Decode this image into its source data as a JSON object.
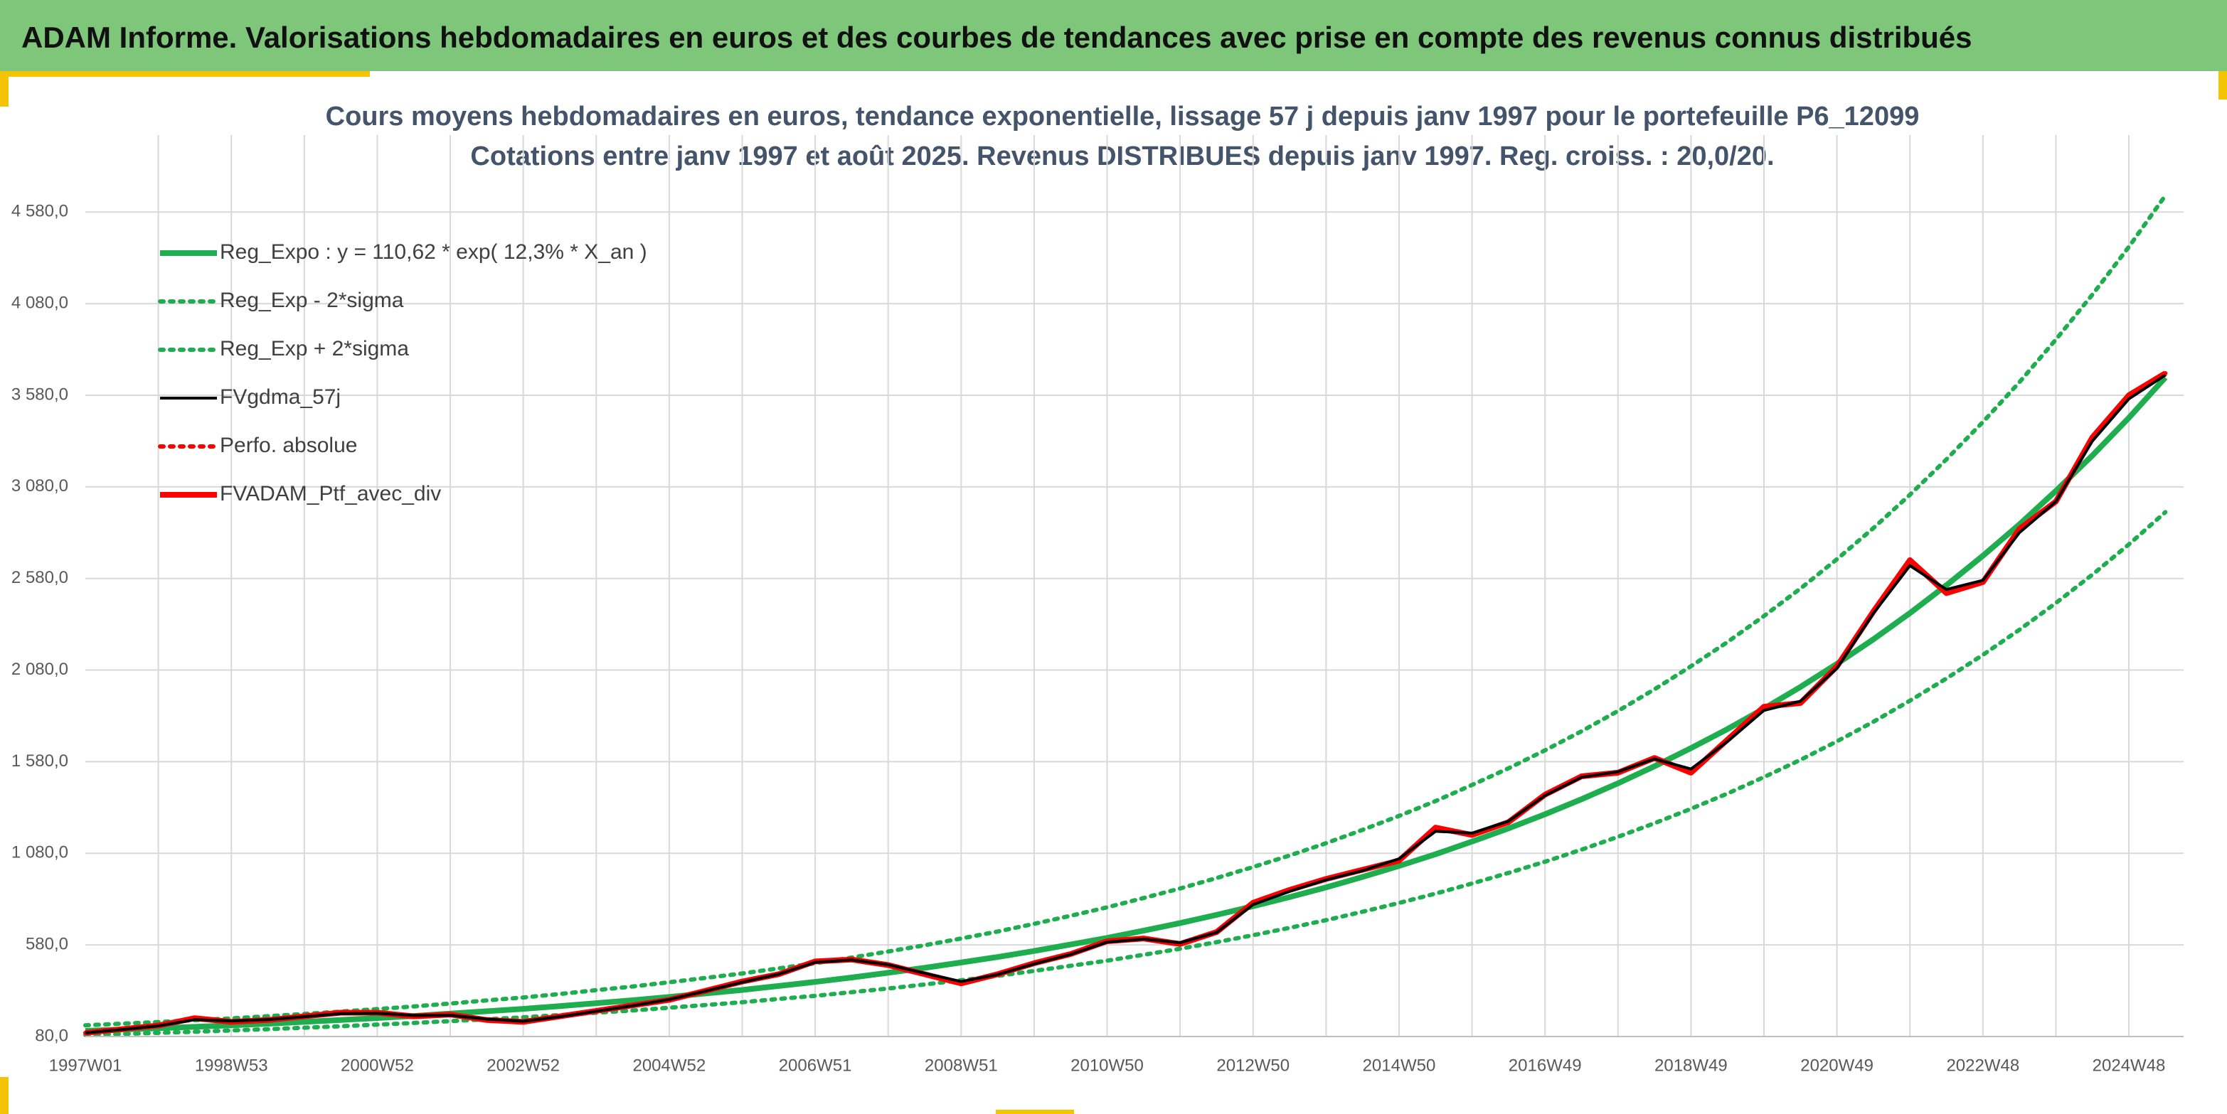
{
  "header": {
    "title": "ADAM Informe. Valorisations hebdomadaires en euros et des courbes de tendances avec prise en compte des revenus connus distribués"
  },
  "chart_data": {
    "type": "line",
    "title": "Cours moyens hebdomadaires en euros, tendance exponentielle, lissage 57 j depuis janv 1997 pour le portefeuille P6_12099",
    "subtitle": "Cotations entre janv 1997 et août 2025. Revenus DISTRIBUES depuis janv 1997. Reg. croiss. : 20,0/20.",
    "categories": [
      "1997W01",
      null,
      null,
      null,
      "1998W53",
      null,
      null,
      null,
      "2000W52",
      null,
      null,
      null,
      "2002W52",
      null,
      null,
      null,
      "2004W52",
      null,
      null,
      null,
      "2006W51",
      null,
      null,
      null,
      "2008W51",
      null,
      null,
      null,
      "2010W50",
      null,
      null,
      null,
      "2012W50",
      null,
      null,
      null,
      "2014W50",
      null,
      null,
      null,
      "2016W49",
      null,
      null,
      null,
      "2018W49",
      null,
      null,
      null,
      "2020W49",
      null,
      null,
      null,
      "2022W48",
      null,
      null,
      null,
      "2024W48",
      null
    ],
    "ylim": [
      80,
      5000
    ],
    "yticks": [
      {
        "value": 80,
        "label": "80,0"
      },
      {
        "value": 580,
        "label": "580,0"
      },
      {
        "value": 1080,
        "label": "1 080,0"
      },
      {
        "value": 1580,
        "label": "1 580,0"
      },
      {
        "value": 2080,
        "label": "2 080,0"
      },
      {
        "value": 2580,
        "label": "2 580,0"
      },
      {
        "value": 3080,
        "label": "3 080,0"
      },
      {
        "value": 3580,
        "label": "3 580,0"
      },
      {
        "value": 4080,
        "label": "4 080,0"
      },
      {
        "value": 4580,
        "label": "4 580,0"
      }
    ],
    "grid": true,
    "legend": "upper left",
    "series": [
      {
        "name": "Reg_Expo : y = 110,62 * exp( 12,3% *  X_an )",
        "color": "#1fae4f",
        "line_style": "solid",
        "values": [
          111,
          118,
          125,
          133,
          141,
          150,
          160,
          170,
          181,
          192,
          205,
          218,
          231,
          246,
          262,
          278,
          296,
          315,
          334,
          356,
          378,
          402,
          428,
          455,
          484,
          514,
          547,
          582,
          618,
          658,
          699,
          744,
          791,
          841,
          894,
          951,
          1011,
          1075,
          1144,
          1216,
          1293,
          1375,
          1462,
          1555,
          1654,
          1758,
          1870,
          1988,
          2114,
          2248,
          2391,
          2543,
          2704,
          2875,
          3058,
          3251,
          3457,
          3677
        ]
      },
      {
        "name": "Reg_Exp - 2*sigma",
        "color": "#1fae4f",
        "line_style": "dotted",
        "values": [
          89,
          94,
          100,
          106,
          113,
          120,
          128,
          136,
          145,
          154,
          164,
          174,
          185,
          197,
          210,
          222,
          237,
          252,
          267,
          285,
          302,
          322,
          342,
          364,
          387,
          411,
          438,
          466,
          494,
          526,
          559,
          595,
          633,
          673,
          715,
          761,
          809,
          860,
          915,
          973,
          1034,
          1100,
          1170,
          1244,
          1323,
          1406,
          1496,
          1590,
          1691,
          1798,
          1913,
          2034,
          2163,
          2300,
          2446,
          2601,
          2766,
          2942
        ]
      },
      {
        "name": "Reg_Exp + 2*sigma",
        "color": "#1fae4f",
        "line_style": "dotted",
        "values": [
          141,
          150,
          159,
          169,
          179,
          191,
          203,
          216,
          230,
          244,
          260,
          277,
          293,
          312,
          333,
          353,
          376,
          400,
          424,
          452,
          480,
          511,
          544,
          578,
          615,
          653,
          695,
          739,
          785,
          836,
          888,
          945,
          1005,
          1068,
          1135,
          1208,
          1284,
          1365,
          1453,
          1544,
          1642,
          1746,
          1857,
          1975,
          2101,
          2233,
          2375,
          2525,
          2685,
          2855,
          3037,
          3230,
          3434,
          3651,
          3884,
          4129,
          4390,
          4670
        ]
      },
      {
        "name": "FVgdma_57j",
        "color": "#000000",
        "line_style": "solid",
        "values": [
          100,
          118,
          138,
          172,
          165,
          172,
          188,
          205,
          207,
          195,
          196,
          175,
          163,
          188,
          218,
          248,
          282,
          328,
          376,
          420,
          485,
          498,
          472,
          425,
          380,
          418,
          476,
          528,
          595,
          612,
          592,
          648,
          800,
          872,
          935,
          985,
          1050,
          1200,
          1190,
          1255,
          1395,
          1495,
          1525,
          1595,
          1540,
          1690,
          1860,
          1910,
          2090,
          2390,
          2650,
          2520,
          2570,
          2830,
          3000,
          3330,
          3560,
          3690
        ]
      },
      {
        "name": "Perfo. absolue",
        "color": "#ff0000",
        "line_style": "dotted",
        "values": [
          100,
          120,
          140,
          180,
          160,
          170,
          190,
          210,
          210,
          190,
          200,
          170,
          160,
          190,
          220,
          250,
          280,
          330,
          380,
          420,
          490,
          500,
          470,
          420,
          370,
          420,
          480,
          530,
          600,
          615,
          585,
          650,
          810,
          880,
          940,
          990,
          1040,
          1220,
          1180,
          1250,
          1400,
          1500,
          1520,
          1600,
          1520,
          1700,
          1880,
          1900,
          2100,
          2400,
          2680,
          2500,
          2560,
          2850,
          3000,
          3350,
          3580,
          3700
        ]
      },
      {
        "name": "FVADAM_Ptf_avec_div",
        "color": "#ff0000",
        "line_style": "solid",
        "values": [
          100,
          120,
          140,
          180,
          160,
          170,
          190,
          210,
          210,
          190,
          200,
          170,
          160,
          190,
          220,
          250,
          280,
          330,
          380,
          420,
          490,
          500,
          470,
          420,
          370,
          420,
          480,
          530,
          600,
          615,
          585,
          650,
          810,
          880,
          940,
          990,
          1040,
          1220,
          1180,
          1250,
          1400,
          1500,
          1520,
          1600,
          1520,
          1700,
          1880,
          1900,
          2100,
          2400,
          2680,
          2500,
          2560,
          2850,
          3000,
          3350,
          3580,
          3700
        ]
      }
    ]
  }
}
